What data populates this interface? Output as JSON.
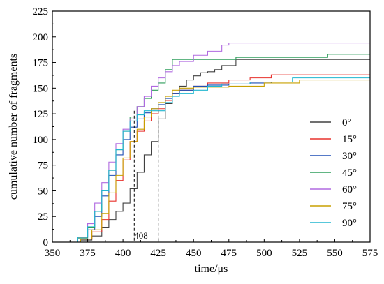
{
  "chart_data": {
    "type": "line",
    "xlabel": "time/μs",
    "ylabel": "cumulative number of fragments",
    "xlim": [
      350,
      575
    ],
    "ylim": [
      0,
      225
    ],
    "x_ticks": [
      "350",
      "375",
      "400",
      "425",
      "450",
      "475",
      "500",
      "525",
      "550",
      "575"
    ],
    "y_ticks": [
      "0",
      "25",
      "50",
      "75",
      "100",
      "125",
      "150",
      "175",
      "200",
      "225"
    ],
    "grid": false,
    "legend_position": "right",
    "annotations": [
      {
        "text": "408",
        "x": 408,
        "y": 128
      },
      {
        "text": "",
        "x": 425,
        "y": 128
      }
    ],
    "series": [
      {
        "name": "0°",
        "color": "#404040",
        "x": [
          355,
          370,
          378,
          385,
          390,
          395,
          400,
          405,
          410,
          415,
          420,
          425,
          430,
          435,
          440,
          445,
          450,
          455,
          460,
          465,
          470,
          480,
          575
        ],
        "y": [
          0,
          2,
          6,
          14,
          22,
          30,
          38,
          52,
          68,
          85,
          98,
          120,
          135,
          145,
          152,
          158,
          162,
          165,
          166,
          168,
          172,
          178,
          178
        ]
      },
      {
        "name": "15°",
        "color": "#e8322d",
        "x": [
          358,
          370,
          378,
          385,
          390,
          395,
          400,
          405,
          410,
          415,
          420,
          425,
          430,
          435,
          440,
          450,
          460,
          475,
          490,
          505,
          575
        ],
        "y": [
          0,
          3,
          10,
          22,
          40,
          60,
          80,
          98,
          108,
          118,
          125,
          130,
          138,
          145,
          148,
          152,
          155,
          158,
          160,
          163,
          163
        ]
      },
      {
        "name": "30°",
        "color": "#1f4fb5",
        "x": [
          355,
          368,
          375,
          380,
          385,
          390,
          395,
          400,
          405,
          410,
          415,
          420,
          425,
          430,
          435,
          440,
          450,
          460,
          475,
          490,
          505
        ],
        "y": [
          0,
          4,
          12,
          25,
          45,
          65,
          85,
          100,
          112,
          120,
          126,
          130,
          134,
          140,
          145,
          148,
          152,
          153,
          154,
          155,
          156
        ]
      },
      {
        "name": "45°",
        "color": "#2e9e5b",
        "x": [
          360,
          368,
          375,
          380,
          385,
          390,
          395,
          400,
          405,
          410,
          415,
          420,
          425,
          430,
          435,
          440,
          460,
          480,
          500,
          545,
          575
        ],
        "y": [
          0,
          4,
          14,
          30,
          50,
          70,
          90,
          108,
          122,
          132,
          140,
          148,
          155,
          168,
          178,
          178,
          178,
          180,
          180,
          183,
          183
        ]
      },
      {
        "name": "60°",
        "color": "#b06ae0",
        "x": [
          355,
          368,
          375,
          380,
          385,
          390,
          395,
          400,
          405,
          410,
          415,
          420,
          425,
          430,
          435,
          440,
          450,
          460,
          470,
          475,
          575
        ],
        "y": [
          0,
          5,
          18,
          38,
          58,
          78,
          96,
          110,
          120,
          132,
          142,
          152,
          160,
          166,
          172,
          176,
          182,
          186,
          192,
          194,
          194
        ]
      },
      {
        "name": "75°",
        "color": "#c8a000",
        "x": [
          360,
          370,
          378,
          385,
          390,
          395,
          400,
          405,
          410,
          415,
          420,
          425,
          430,
          435,
          440,
          450,
          475,
          500,
          525,
          575
        ],
        "y": [
          0,
          3,
          12,
          28,
          48,
          65,
          82,
          98,
          110,
          122,
          130,
          136,
          142,
          148,
          150,
          151,
          152,
          155,
          158,
          158
        ]
      },
      {
        "name": "90°",
        "color": "#21b6cf",
        "x": [
          355,
          368,
          375,
          380,
          385,
          390,
          395,
          400,
          405,
          410,
          415,
          420,
          425,
          430,
          435,
          440,
          450,
          460,
          470,
          490,
          520,
          575
        ],
        "y": [
          0,
          5,
          15,
          30,
          50,
          70,
          90,
          108,
          118,
          124,
          128,
          128,
          128,
          136,
          142,
          145,
          148,
          152,
          154,
          156,
          160,
          160
        ]
      }
    ]
  }
}
